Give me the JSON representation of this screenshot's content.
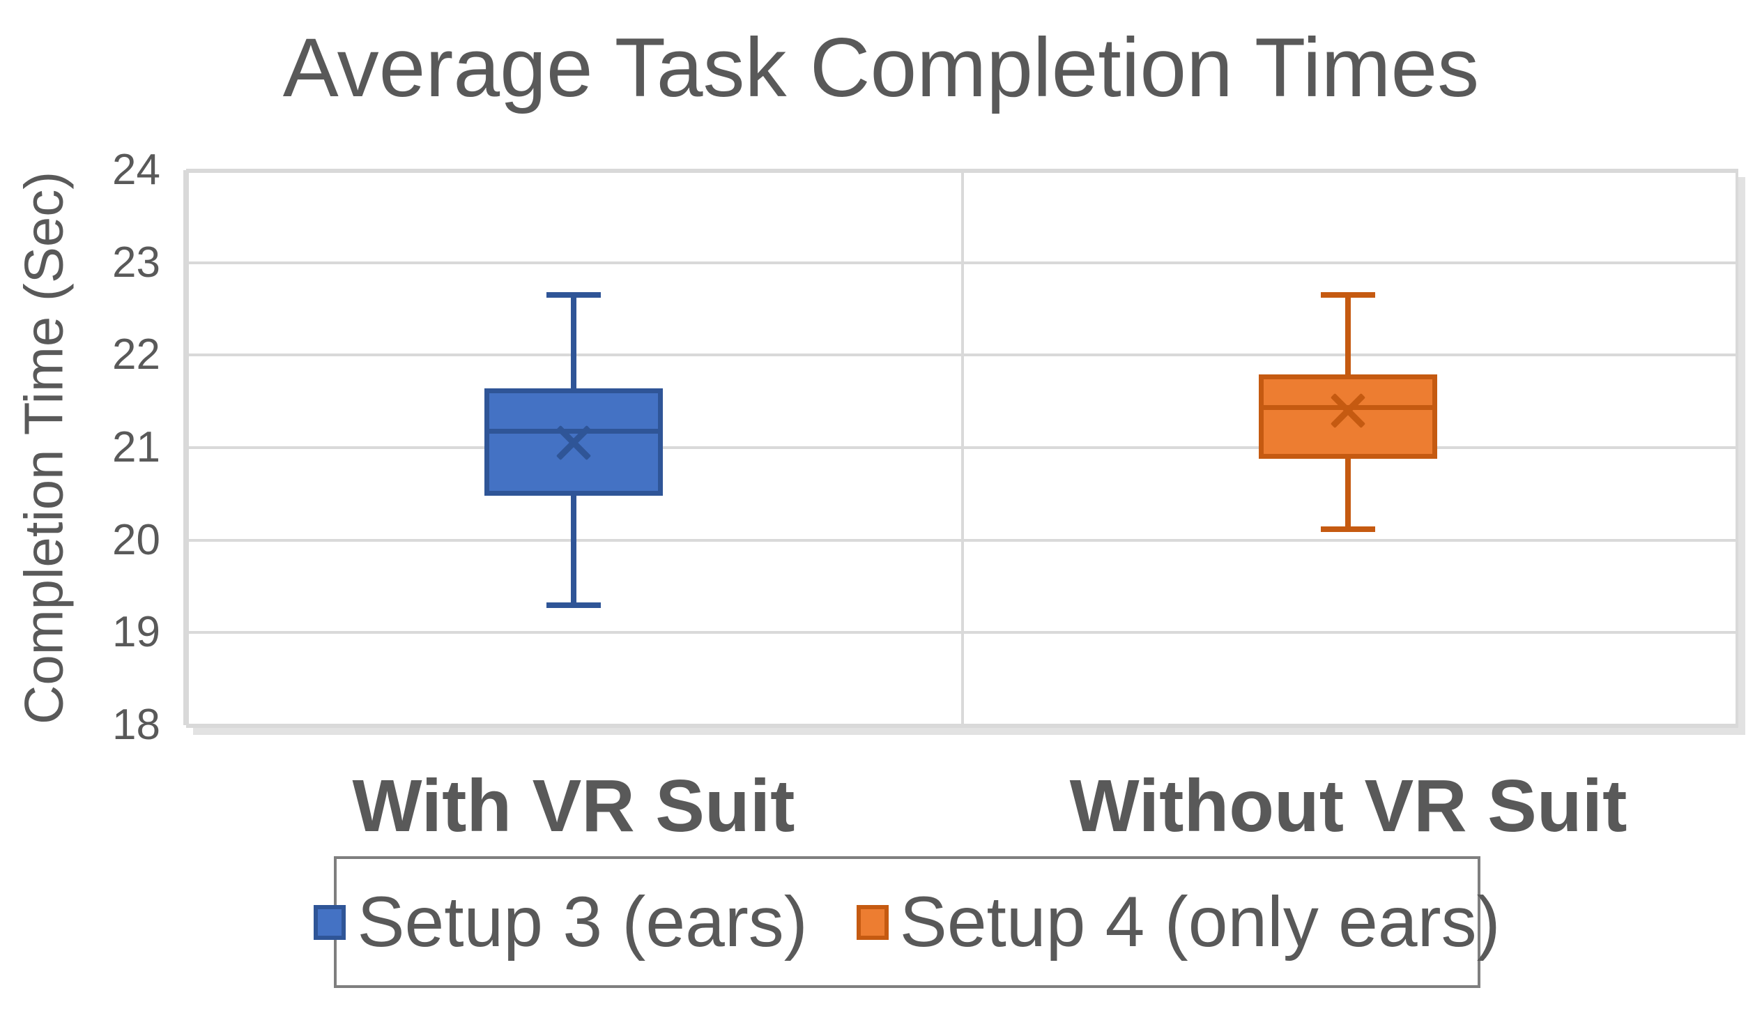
{
  "title": "Average Task Completion Times",
  "y_axis": {
    "title": "Completion Time (Sec)",
    "tick_labels": [
      "24",
      "23",
      "22",
      "21",
      "20",
      "19",
      "18"
    ]
  },
  "x_axis": {
    "categories": [
      "With VR Suit",
      "Without VR Suit"
    ]
  },
  "legend": {
    "items": [
      {
        "label": "Setup 3 (ears)",
        "fill": "#4472C4",
        "stroke": "#2F5597"
      },
      {
        "label": "Setup 4 (only ears)",
        "fill": "#ED7D31",
        "stroke": "#C55A11"
      }
    ]
  },
  "colors": {
    "text": "#595959",
    "grid": "#D9D9D9",
    "legend_border": "#7F7F7F",
    "background": "#FFFFFF"
  },
  "chart_data": {
    "type": "boxplot",
    "title": "Average Task Completion Times",
    "ylabel": "Completion Time (Sec)",
    "xlabel": "",
    "ylim": [
      18,
      24
    ],
    "ytick_step": 1,
    "grid": true,
    "legend_position": "bottom",
    "categories": [
      "With VR Suit",
      "Without VR Suit"
    ],
    "series": [
      {
        "name": "Setup 3 (ears)",
        "category": "With VR Suit",
        "fill": "#4472C4",
        "stroke": "#2F5597",
        "whisker_low": 19.3,
        "q1": 20.48,
        "median": 21.18,
        "mean": 21.05,
        "q3": 21.64,
        "whisker_high": 22.65
      },
      {
        "name": "Setup 4 (only ears)",
        "category": "Without VR Suit",
        "fill": "#ED7D31",
        "stroke": "#C55A11",
        "whisker_low": 20.12,
        "q1": 20.88,
        "median": 21.44,
        "mean": 21.4,
        "q3": 21.79,
        "whisker_high": 22.65
      }
    ]
  }
}
